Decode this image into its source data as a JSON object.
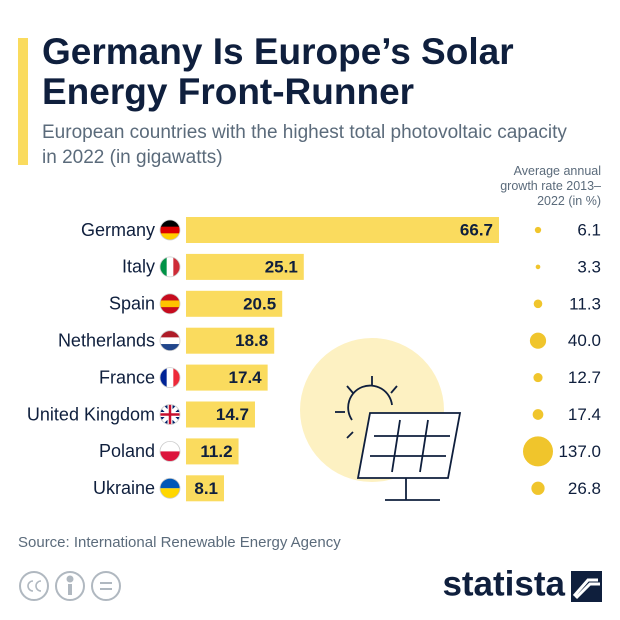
{
  "chart_data": {
    "type": "bar",
    "title": "Germany Is Europe’s Solar Energy Front-Runner",
    "subtitle": "European countries with the highest total photovoltaic capacity in 2022 (in gigawatts)",
    "categories": [
      "Germany",
      "Italy",
      "Spain",
      "Netherlands",
      "France",
      "United Kingdom",
      "Poland",
      "Ukraine"
    ],
    "values": [
      66.7,
      25.1,
      20.5,
      18.8,
      17.4,
      14.7,
      11.2,
      8.1
    ],
    "color": "#fadb5e",
    "growth": {
      "label": "Average annual growth rate 2013–2022 (in %)",
      "values": [
        6.1,
        3.3,
        11.3,
        40.0,
        12.7,
        17.4,
        137.0,
        26.8
      ],
      "value_labels": [
        "6.1",
        "3.3",
        "11.3",
        "40.0",
        "12.7",
        "17.4",
        "137.0",
        "26.8"
      ],
      "color": "#f0c52c"
    },
    "source": "Source: International Renewable Energy Agency",
    "brand": "statista"
  }
}
